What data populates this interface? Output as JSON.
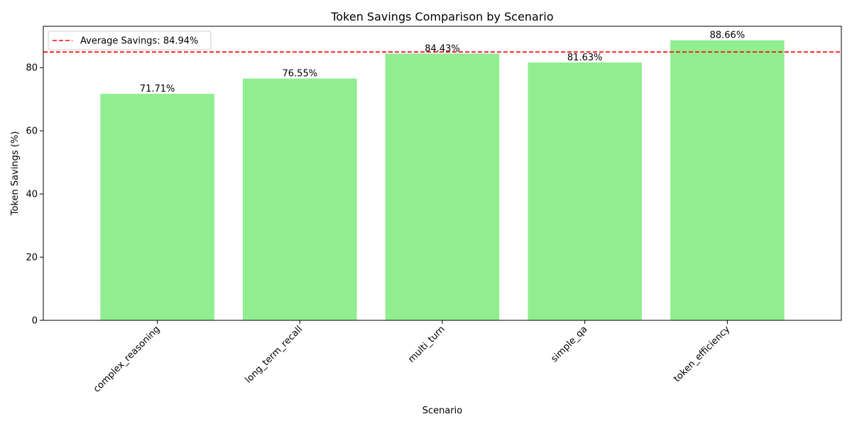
{
  "chart_data": {
    "type": "bar",
    "title": "Token Savings Comparison by Scenario",
    "xlabel": "Scenario",
    "ylabel": "Token Savings (%)",
    "categories": [
      "complex_reasoning",
      "long_term_recall",
      "multi_turn",
      "simple_qa",
      "token_efficiency"
    ],
    "values": [
      71.71,
      76.55,
      84.43,
      81.63,
      88.66
    ],
    "data_labels": [
      "71.71%",
      "76.55%",
      "84.43%",
      "81.63%",
      "88.66%"
    ],
    "yticks": [
      0,
      20,
      40,
      60,
      80
    ],
    "ylim": [
      0,
      93.09
    ],
    "bar_color": "#90ee90",
    "reference_line": {
      "value": 84.94,
      "label": "Average Savings: 84.94%",
      "color": "#ff0000",
      "style": "dashed"
    },
    "legend": {
      "position": "top-left",
      "entries": [
        "Average Savings: 84.94%"
      ]
    },
    "grid": false,
    "xtick_rotation": 45
  }
}
